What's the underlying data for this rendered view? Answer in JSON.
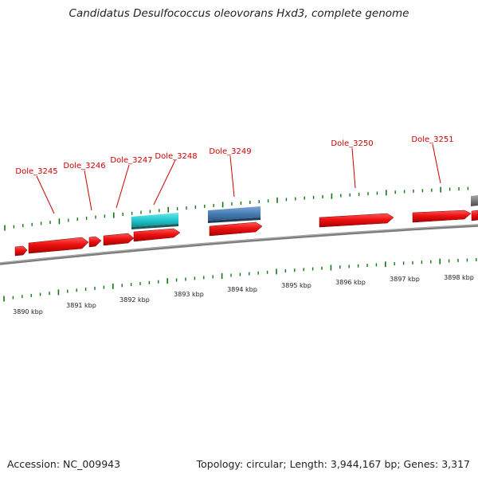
{
  "header": {
    "title": "Candidatus Desulfococcus oleovorans Hxd3, complete genome"
  },
  "footer": {
    "accession": "Accession: NC_009943",
    "stats": "Topology: circular; Length: 3,944,167 bp; Genes: 3,317"
  },
  "gene_labels": [
    "Dole_3245",
    "Dole_3246",
    "Dole_3247",
    "Dole_3248",
    "Dole_3249",
    "Dole_3250",
    "Dole_3251"
  ],
  "scale_labels": [
    "3890 kbp",
    "3891 kbp",
    "3892 kbp",
    "3893 kbp",
    "3894 kbp",
    "3895 kbp",
    "3896 kbp",
    "3897 kbp",
    "3898 kbp"
  ],
  "colors": {
    "gene_forward": "#ee1111",
    "rna_cyan": "#22c8cc",
    "feature_blue": "#4a7fb5",
    "ticks": "#117711",
    "backbone": "#808080",
    "labels": "#cc0000"
  },
  "legend_semantics": {
    "red_arrows": "protein-coding genes",
    "cyan_block": "rna feature",
    "blue_block": "other feature"
  }
}
